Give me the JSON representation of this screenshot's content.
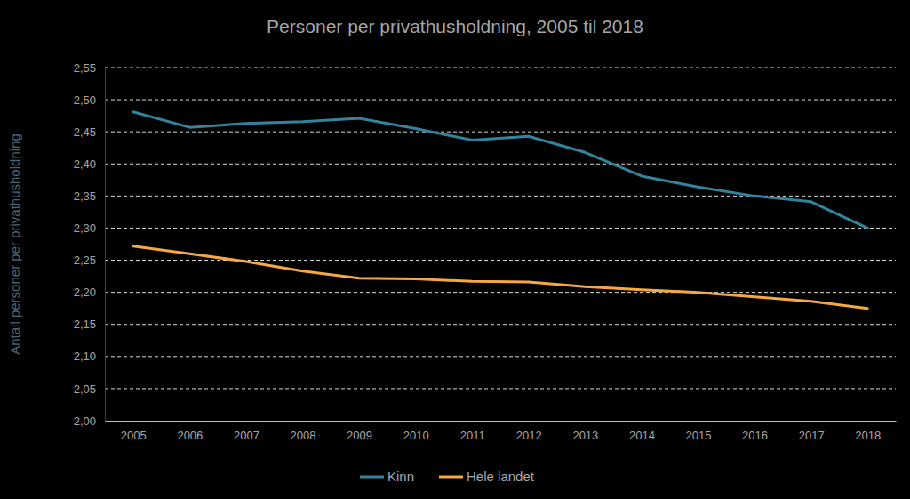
{
  "chart_data": {
    "type": "line",
    "title": "Personer per privathusholdning, 2005 til 2018",
    "y_label": "Antall personer per privathusholdning",
    "categories": [
      "2005",
      "2006",
      "2007",
      "2008",
      "2009",
      "2010",
      "2011",
      "2012",
      "2013",
      "2014",
      "2015",
      "2016",
      "2017",
      "2018"
    ],
    "series": [
      {
        "name": "Kinn",
        "color": "#31849b",
        "values": [
          2.481,
          2.457,
          2.463,
          2.466,
          2.471,
          2.455,
          2.437,
          2.443,
          2.418,
          2.381,
          2.364,
          2.35,
          2.341,
          2.3
        ]
      },
      {
        "name": "Hele landet",
        "color": "#f5a742",
        "values": [
          2.272,
          2.26,
          2.248,
          2.233,
          2.222,
          2.221,
          2.217,
          2.216,
          2.209,
          2.204,
          2.2,
          2.193,
          2.186,
          2.175
        ]
      }
    ],
    "ylim": [
      2.0,
      2.55
    ],
    "yticks": [
      {
        "value": 2.0,
        "label": "2,00"
      },
      {
        "value": 2.05,
        "label": "2,05"
      },
      {
        "value": 2.1,
        "label": "2,10"
      },
      {
        "value": 2.15,
        "label": "2,15"
      },
      {
        "value": 2.2,
        "label": "2,20"
      },
      {
        "value": 2.25,
        "label": "2,25"
      },
      {
        "value": 2.3,
        "label": "2,30"
      },
      {
        "value": 2.35,
        "label": "2,35"
      },
      {
        "value": 2.4,
        "label": "2,40"
      },
      {
        "value": 2.45,
        "label": "2,45"
      },
      {
        "value": 2.5,
        "label": "2,50"
      },
      {
        "value": 2.55,
        "label": "2,55"
      }
    ],
    "grid": true,
    "legend": "bottom"
  }
}
